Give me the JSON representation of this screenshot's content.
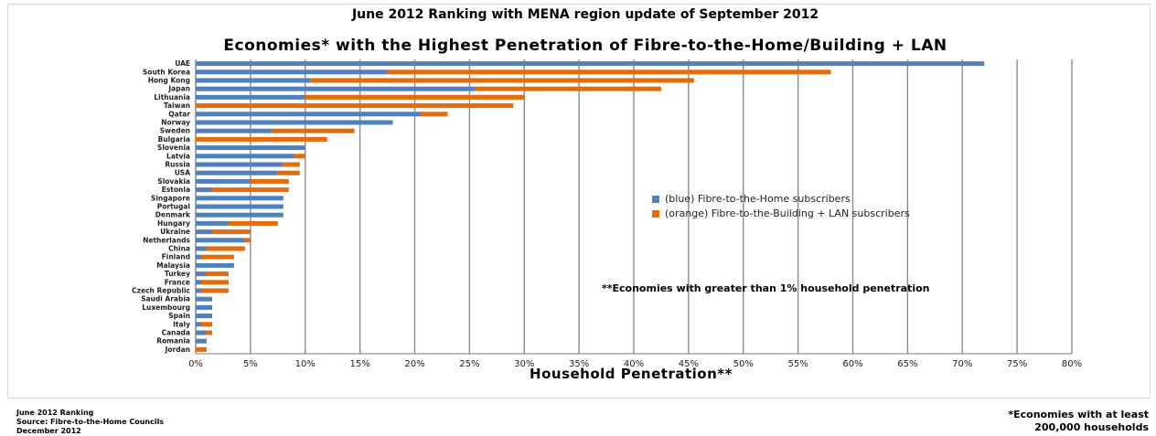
{
  "header": {
    "top_title": "June 2012 Ranking with MENA region update of September 2012"
  },
  "chart_data": {
    "type": "bar",
    "orientation": "horizontal",
    "stacked": true,
    "title": "Economies* with the Highest Penetration of Fibre-to-the-Home/Building + LAN",
    "xlabel": "Household Penetration**",
    "ylabel": "",
    "xlim": [
      0,
      80
    ],
    "x_ticks": [
      "0%",
      "5%",
      "10%",
      "15%",
      "20%",
      "25%",
      "30%",
      "35%",
      "40%",
      "45%",
      "50%",
      "55%",
      "60%",
      "65%",
      "70%",
      "75%",
      "80%"
    ],
    "grid": "vertical",
    "legend_position": "center-right",
    "categories": [
      "UAE",
      "South Korea",
      "Hong Kong",
      "Japan",
      "Lithuania",
      "Taiwan",
      "Qatar",
      "Norway",
      "Sweden",
      "Bulgaria",
      "Slovenia",
      "Latvia",
      "Russia",
      "USA",
      "Slovakia",
      "Estonia",
      "Singapore",
      "Portugal",
      "Denmark",
      "Hungary",
      "Ukraine",
      "Netherlands",
      "China",
      "Finland",
      "Malaysia",
      "Turkey",
      "France",
      "Czech Republic",
      "Saudi Arabia",
      "Luxembourg",
      "Spain",
      "Italy",
      "Canada",
      "Romania",
      "Jordan"
    ],
    "series": [
      {
        "name": "(blue) Fibre-to-the-Home subscribers",
        "color": "#4f81bd",
        "values": [
          72,
          17.5,
          10.5,
          25.5,
          10,
          0,
          20.5,
          18,
          7,
          0,
          10,
          9,
          8,
          7.5,
          5,
          1.5,
          8,
          8,
          8,
          3,
          1.5,
          4.5,
          1,
          0.5,
          3.5,
          1,
          0.5,
          0.5,
          1.5,
          1.5,
          1.5,
          0.5,
          1,
          1,
          0
        ]
      },
      {
        "name": "(orange) Fibre-to-the-Building + LAN subscribers",
        "color": "#e46c0a",
        "values": [
          0,
          40.5,
          35,
          17,
          20,
          29,
          2.5,
          0,
          7.5,
          12,
          0,
          1,
          1.5,
          2,
          3.5,
          7,
          0,
          0,
          0,
          4.5,
          3.5,
          0.5,
          3.5,
          3,
          0,
          2,
          2.5,
          2.5,
          0,
          0,
          0,
          1,
          0.5,
          0,
          1
        ]
      }
    ],
    "annotations": [
      "**Economies with greater than 1% household penetration"
    ]
  },
  "footer": {
    "left_lines": [
      "June 2012 Ranking",
      "Source: Fibre-to-the-Home Councils",
      "December 2012"
    ],
    "right_lines": [
      "*Economies with at least",
      "200,000 households"
    ]
  }
}
